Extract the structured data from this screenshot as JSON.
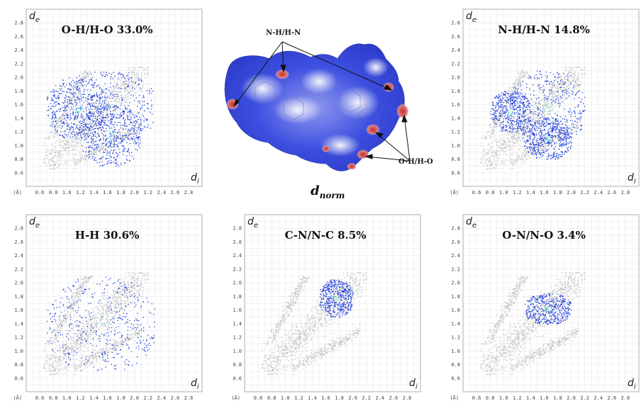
{
  "chart_data": [
    {
      "type": "scatter",
      "title": "O-H/H-O 33.0%",
      "xlabel": "d_i",
      "ylabel": "d_e",
      "axis_unit": "(Å)",
      "x_ticks": [
        "0.6",
        "0.8",
        "1.0",
        "1.2",
        "1.4",
        "1.6",
        "1.8",
        "2.0",
        "2.2",
        "2.4",
        "2.6",
        "2.8"
      ],
      "y_ticks": [
        "0.6",
        "0.8",
        "1.0",
        "1.2",
        "1.4",
        "1.6",
        "1.8",
        "2.0",
        "2.2",
        "2.4",
        "2.6",
        "2.8"
      ],
      "xlim": [
        0.4,
        3.0
      ],
      "ylim": [
        0.4,
        3.0
      ],
      "grid": true,
      "highlight_regions": [
        {
          "x": [
            0.9,
            2.3
          ],
          "y": [
            1.0,
            2.1
          ]
        },
        {
          "x": [
            0.7,
            1.6
          ],
          "y": [
            1.1,
            2.0
          ],
          "note": "spike toward 0.75,1.15"
        },
        {
          "x": [
            1.2,
            2.1
          ],
          "y": [
            0.7,
            1.6
          ],
          "note": "spike toward 1.15,0.75"
        }
      ]
    },
    {
      "type": "scatter",
      "title": "N-H/H-N 14.8%",
      "xlabel": "d_i",
      "ylabel": "d_e",
      "axis_unit": "(Å)",
      "x_ticks": [
        "0.6",
        "0.8",
        "1.0",
        "1.2",
        "1.4",
        "1.6",
        "1.8",
        "2.0",
        "2.2",
        "2.4",
        "2.6",
        "2.8"
      ],
      "y_ticks": [
        "0.6",
        "0.8",
        "1.0",
        "1.2",
        "1.4",
        "1.6",
        "1.8",
        "2.0",
        "2.2",
        "2.4",
        "2.6",
        "2.8"
      ],
      "xlim": [
        0.4,
        3.0
      ],
      "ylim": [
        0.4,
        3.0
      ],
      "grid": true,
      "highlight_regions": [
        {
          "x": [
            1.1,
            2.2
          ],
          "y": [
            1.0,
            2.1
          ]
        },
        {
          "x": [
            0.8,
            1.4
          ],
          "y": [
            1.2,
            1.8
          ]
        },
        {
          "x": [
            1.3,
            2.0
          ],
          "y": [
            0.8,
            1.4
          ]
        }
      ]
    },
    {
      "type": "scatter",
      "title": "H-H 30.6%",
      "xlabel": "d_i",
      "ylabel": "d_e",
      "axis_unit": "(Å)",
      "x_ticks": [
        "0.6",
        "0.8",
        "1.0",
        "1.2",
        "1.4",
        "1.6",
        "1.8",
        "2.0",
        "2.2",
        "2.4",
        "2.6",
        "2.8"
      ],
      "y_ticks": [
        "0.6",
        "0.8",
        "1.0",
        "1.2",
        "1.4",
        "1.6",
        "1.8",
        "2.0",
        "2.2",
        "2.4",
        "2.6",
        "2.8"
      ],
      "xlim": [
        0.4,
        3.0
      ],
      "ylim": [
        0.4,
        3.0
      ],
      "grid": true,
      "highlight_regions": [
        {
          "x": [
            0.7,
            2.3
          ],
          "y": [
            0.7,
            2.1
          ],
          "note": "diagonal band"
        }
      ]
    },
    {
      "type": "scatter",
      "title": "C-N/N-C 8.5%",
      "xlabel": "d_i",
      "ylabel": "d_e",
      "axis_unit": "(Å)",
      "x_ticks": [
        "0.6",
        "0.8",
        "1.0",
        "1.2",
        "1.4",
        "1.6",
        "1.8",
        "2.0",
        "2.2",
        "2.4",
        "2.6",
        "2.8"
      ],
      "y_ticks": [
        "0.6",
        "0.8",
        "1.0",
        "1.2",
        "1.4",
        "1.6",
        "1.8",
        "2.0",
        "2.2",
        "2.4",
        "2.6",
        "2.8"
      ],
      "xlim": [
        0.4,
        3.0
      ],
      "ylim": [
        0.4,
        3.0
      ],
      "grid": true,
      "highlight_regions": [
        {
          "x": [
            1.5,
            2.0
          ],
          "y": [
            1.5,
            2.05
          ]
        }
      ]
    },
    {
      "type": "scatter",
      "title": "O-N/N-O 3.4%",
      "xlabel": "d_i",
      "ylabel": "d_e",
      "axis_unit": "(Å)",
      "x_ticks": [
        "0.6",
        "0.8",
        "1.0",
        "1.2",
        "1.4",
        "1.6",
        "1.8",
        "2.0",
        "2.2",
        "2.4",
        "2.6",
        "2.8"
      ],
      "y_ticks": [
        "0.6",
        "0.8",
        "1.0",
        "1.2",
        "1.4",
        "1.6",
        "1.8",
        "2.0",
        "2.2",
        "2.4",
        "2.6",
        "2.8"
      ],
      "xlim": [
        0.4,
        3.0
      ],
      "ylim": [
        0.4,
        3.0
      ],
      "grid": true,
      "highlight_regions": [
        {
          "x": [
            1.3,
            2.0
          ],
          "y": [
            1.4,
            1.85
          ]
        }
      ]
    }
  ],
  "surface": {
    "label": "d",
    "label_sub": "norm",
    "annotations": [
      "N-H/H-N",
      "O-H/H-O"
    ]
  },
  "colors": {
    "grey_points": "#bdbdbd",
    "blue_points": "#1537e0",
    "cyan_core": "#35d3c0",
    "surface_blue": "#3b4be0",
    "surface_red": "#d94b4b",
    "surface_white": "#eef0fa"
  }
}
